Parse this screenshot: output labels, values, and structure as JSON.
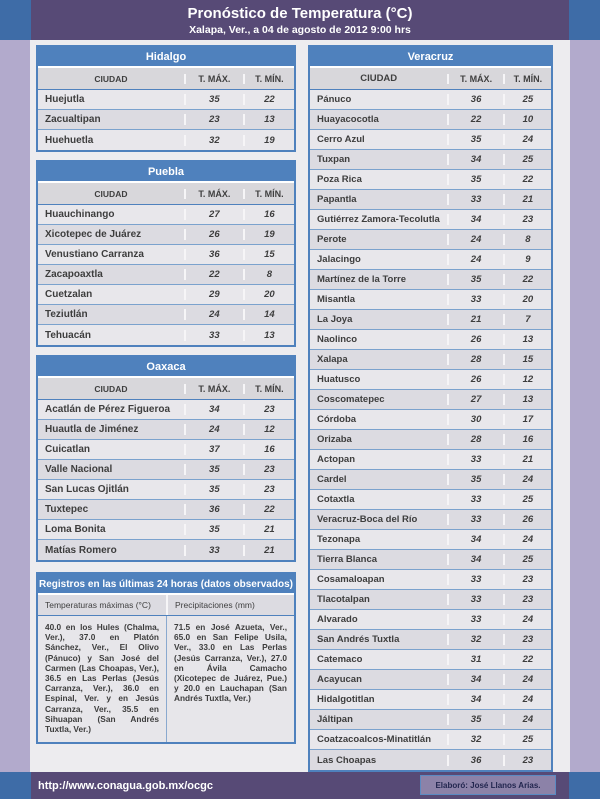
{
  "header": {
    "title": "Pronóstico de Temperatura (°C)",
    "subtitle": "Xalapa, Ver., a 04 de agosto de 2012  9:00 hrs"
  },
  "columns": {
    "city": "CIUDAD",
    "tmax": "T. MÁX.",
    "tmin": "T. MÍN."
  },
  "left_tables": [
    {
      "state": "Hidalgo",
      "rows": [
        [
          "Huejutla",
          35,
          22
        ],
        [
          "Zacualtipan",
          23,
          13
        ],
        [
          "Huehuetla",
          32,
          19
        ]
      ]
    },
    {
      "state": "Puebla",
      "rows": [
        [
          "Huauchinango",
          27,
          16
        ],
        [
          "Xicotepec de Juárez",
          26,
          19
        ],
        [
          "Venustiano Carranza",
          36,
          15
        ],
        [
          "Zacapoaxtla",
          22,
          8
        ],
        [
          "Cuetzalan",
          29,
          20
        ],
        [
          "Teziutlán",
          24,
          14
        ],
        [
          "Tehuacán",
          33,
          13
        ]
      ]
    },
    {
      "state": "Oaxaca",
      "rows": [
        [
          "Acatlán de Pérez Figueroa",
          34,
          23
        ],
        [
          "Huautla de Jiménez",
          24,
          12
        ],
        [
          "Cuicatlan",
          37,
          16
        ],
        [
          "Valle Nacional",
          35,
          23
        ],
        [
          "San Lucas Ojitlán",
          35,
          23
        ],
        [
          "Tuxtepec",
          36,
          22
        ],
        [
          "Loma Bonita",
          35,
          21
        ],
        [
          "Matías Romero",
          33,
          21
        ]
      ]
    }
  ],
  "right_table": {
    "state": "Veracruz",
    "rows": [
      [
        "Pánuco",
        36,
        25
      ],
      [
        "Huayacocotla",
        22,
        10
      ],
      [
        "Cerro Azul",
        35,
        24
      ],
      [
        "Tuxpan",
        34,
        25
      ],
      [
        "Poza Rica",
        35,
        22
      ],
      [
        "Papantla",
        33,
        21
      ],
      [
        "Gutiérrez Zamora-Tecolutla",
        34,
        23
      ],
      [
        "Perote",
        24,
        8
      ],
      [
        "Jalacingo",
        24,
        9
      ],
      [
        "Martínez de la Torre",
        35,
        22
      ],
      [
        "Misantla",
        33,
        20
      ],
      [
        "La Joya",
        21,
        7
      ],
      [
        "Naolinco",
        26,
        13
      ],
      [
        "Xalapa",
        28,
        15
      ],
      [
        "Huatusco",
        26,
        12
      ],
      [
        "Coscomatepec",
        27,
        13
      ],
      [
        "Córdoba",
        30,
        17
      ],
      [
        "Orizaba",
        28,
        16
      ],
      [
        "Actopan",
        33,
        21
      ],
      [
        "Cardel",
        35,
        24
      ],
      [
        "Cotaxtla",
        33,
        25
      ],
      [
        "Veracruz-Boca del Río",
        33,
        26
      ],
      [
        "Tezonapa",
        34,
        24
      ],
      [
        "Tierra Blanca",
        34,
        25
      ],
      [
        "Cosamaloapan",
        33,
        23
      ],
      [
        "Tlacotalpan",
        33,
        23
      ],
      [
        "Alvarado",
        33,
        24
      ],
      [
        "San Andrés Tuxtla",
        32,
        23
      ],
      [
        "Catemaco",
        31,
        22
      ],
      [
        "Acayucan",
        34,
        24
      ],
      [
        "Hidalgotitlan",
        34,
        24
      ],
      [
        "Jáltipan",
        35,
        24
      ],
      [
        "Coatzacoalcos-Minatitlán",
        32,
        25
      ],
      [
        "Las Choapas",
        36,
        23
      ]
    ]
  },
  "records": {
    "title": "Registros en las últimas 24 horas (datos observados)",
    "temps_header": "Temperaturas máximas (°C)",
    "precip_header": "Precipitaciones (mm)",
    "temps_text": "40.0 en los Hules (Chalma, Ver.), 37.0 en Platón Sánchez, Ver., El Olivo (Pánuco) y San José del Carmen (Las Choapas, Ver.), 36.5 en Las Perlas (Jesús Carranza, Ver.), 36.0 en Espinal, Ver. y en Jesús Carranza, Ver., 35.5 en Sihuapan (San Andrés Tuxtla, Ver.)",
    "precip_text": "71.5 en José Azueta, Ver., 65.0 en San Felipe Usila, Ver., 33.0 en Las Perlas (Jesús Carranza, Ver.), 27.0 en Ávila Camacho (Xicotepec de Juárez, Pue.) y 20.0 en Lauchapan (San Andrés Tuxtla, Ver.)"
  },
  "footer": {
    "url": "http://www.conagua.gob.mx/ocgc",
    "credit": "Elaboró:  José Llanos Arias."
  },
  "colors": {
    "band_purple": "#574a76",
    "corner_blue": "#3e6ca7",
    "margin_lavender": "#b2aacc",
    "table_blue": "#4f81bd",
    "content_bg": "#edecef"
  }
}
